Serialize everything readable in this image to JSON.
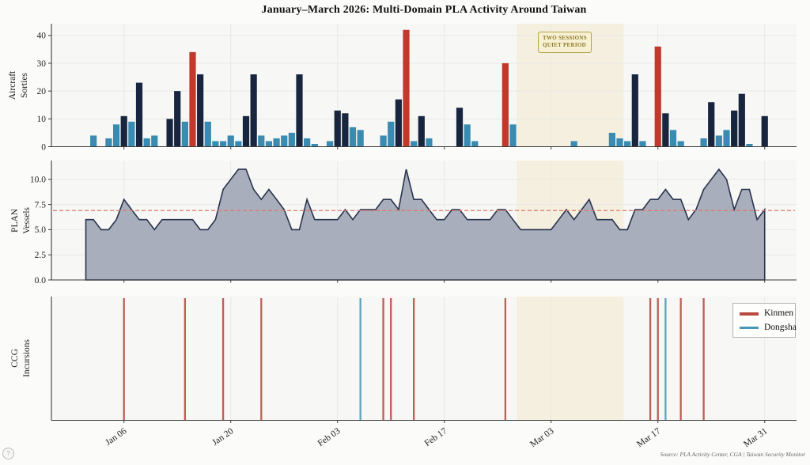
{
  "title": "January–March 2026: Multi-Domain PLA Activity Around Taiwan",
  "source_note": "Source: PLA Activity Center, CGA | Taiwan Security Monitor",
  "watermark_glyph": "?",
  "colors": {
    "page_bg": "#fbfbf9",
    "panel_bg": "#f7f7f5",
    "grid": "#e9e9e6",
    "axis": "#3c3c3c",
    "quiet_band": "#f4efde",
    "bar_lightblue": "#3a8bb2",
    "bar_navy": "#17253f",
    "bar_red": "#c0392b",
    "area_fill": "#a8aebb",
    "area_line": "#28334e",
    "mean_line": "#e0756a",
    "kinmen_red": "#b8493f",
    "dongsha_blue": "#4897b8",
    "annotation_gold": "#8d7a28"
  },
  "x_axis": {
    "start": "Jan 01",
    "end": "Mar 31",
    "days_total": 90,
    "tick_days": [
      6,
      20,
      34,
      48,
      62,
      76,
      90
    ],
    "tick_labels": [
      "Jan 06",
      "Jan 20",
      "Feb 03",
      "Feb 17",
      "Mar 03",
      "Mar 17",
      "Mar 31"
    ]
  },
  "quiet_period": {
    "label": "TWO SESSIONS QUIET PERIOD",
    "label_lines": [
      "TWO SESSIONS",
      "QUIET PERIOD"
    ],
    "start_date": "Feb 27",
    "end_date": "Mar 12",
    "start_day": 58,
    "end_day": 71
  },
  "chart_data": [
    {
      "type": "bar",
      "name": "aircraft-sorties",
      "ylabel": "Aircraft Sorties",
      "ylabel_lines": [
        "Aircraft",
        "Sorties"
      ],
      "ylim": [
        0,
        44.2
      ],
      "yticks": [
        0,
        10,
        20,
        30,
        40
      ],
      "ytick_labels": [
        "0",
        "10",
        "20",
        "30",
        "40"
      ],
      "x_note": "daily values, Jan 01 - Mar 31",
      "values": [
        0,
        4,
        0,
        3,
        8,
        11,
        9,
        23,
        3,
        4,
        0,
        10,
        20,
        9,
        34,
        26,
        9,
        2,
        2,
        4,
        2,
        11,
        26,
        4,
        2,
        3,
        4,
        5,
        26,
        3,
        1,
        0,
        2,
        13,
        12,
        7,
        6,
        0,
        0,
        4,
        9,
        17,
        42,
        2,
        11,
        3,
        0,
        0,
        0,
        14,
        8,
        2,
        0,
        0,
        0,
        30,
        8,
        0,
        0,
        0,
        0,
        0,
        0,
        0,
        2,
        0,
        0,
        0,
        0,
        5,
        3,
        2,
        26,
        2,
        0,
        36,
        12,
        6,
        2,
        0,
        0,
        3,
        16,
        4,
        6,
        13,
        19,
        1,
        0,
        11
      ],
      "bar_types": [
        "0b0bbnbnbb",
        "0nnbrnbbbb",
        "bnnbbbbbnb",
        "b0bnnbb00b",
        "bnrbnb000n",
        "bb000rb000",
        "0000b0000b",
        "bbnb0rnbb0",
        "0bnbbnnb0n"
      ],
      "bar_type_colors": {
        "b": "#3a8bb2",
        "n": "#17253f",
        "r": "#c0392b"
      }
    },
    {
      "type": "area",
      "name": "plan-vessels",
      "ylabel": "PLAN Vessels",
      "ylabel_lines": [
        "PLAN",
        "Vessels"
      ],
      "ylim": [
        0,
        11.87
      ],
      "yticks": [
        0,
        2.5,
        5,
        7.5,
        10
      ],
      "ytick_labels": [
        "0.0",
        "2.5",
        "5.0",
        "7.5",
        "10.0"
      ],
      "mean_line": 6.9,
      "values": [
        6,
        6,
        5,
        5,
        6,
        8,
        7,
        6,
        6,
        5,
        6,
        6,
        6,
        6,
        6,
        5,
        5,
        6,
        9,
        10,
        11,
        11,
        9,
        8,
        9,
        8,
        7,
        5,
        5,
        8,
        6,
        6,
        6,
        6,
        7,
        6,
        7,
        7,
        7,
        8,
        8,
        7,
        11,
        8,
        8,
        7,
        6,
        6,
        7,
        7,
        6,
        6,
        6,
        6,
        7,
        7,
        6,
        5,
        5,
        5,
        5,
        5,
        6,
        7,
        6,
        7,
        8,
        6,
        6,
        6,
        5,
        5,
        7,
        7,
        8,
        8,
        9,
        8,
        8,
        6,
        7,
        9,
        10,
        11,
        10,
        7,
        9,
        9,
        6,
        7
      ]
    },
    {
      "type": "event",
      "name": "ccg-incursions",
      "ylabel": "CCG Incursions",
      "ylabel_lines": [
        "CCG",
        "Incursions"
      ],
      "legend_position": "upper right",
      "series": [
        {
          "name": "Kinmen",
          "color": "#b8493f",
          "days": [
            6,
            14,
            19,
            24,
            40,
            41,
            44,
            56,
            75,
            76,
            79,
            82
          ],
          "dates": [
            "Jan 06",
            "Jan 14",
            "Jan 19",
            "Jan 24",
            "Feb 09",
            "Feb 10",
            "Feb 13",
            "Feb 25",
            "Mar 16",
            "Mar 17",
            "Mar 20",
            "Mar 23"
          ]
        },
        {
          "name": "Dongsha",
          "color": "#4897b8",
          "days": [
            37,
            77
          ],
          "dates": [
            "Feb 06",
            "Mar 18"
          ]
        }
      ]
    }
  ]
}
